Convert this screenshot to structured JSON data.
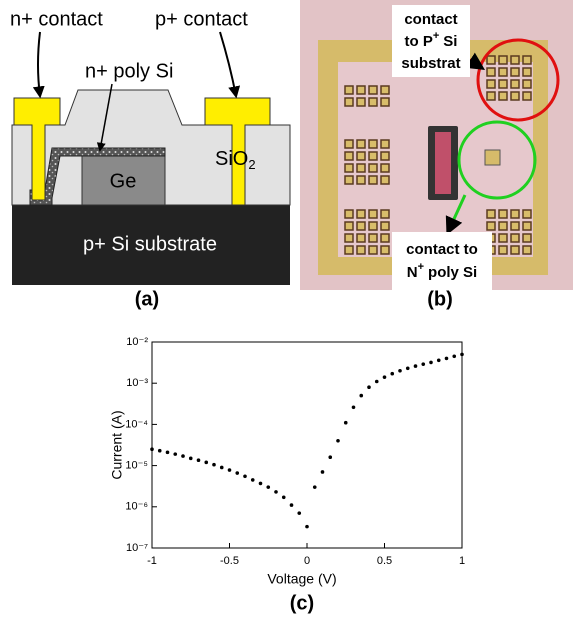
{
  "panel_a": {
    "label": "(a)",
    "n_contact": "n+ contact",
    "p_contact": "p+ contact",
    "poly": "n+ poly Si",
    "ge": "Ge",
    "sio2": "SiO",
    "sio2_sub": "2",
    "substrate": "p+ Si substrate"
  },
  "panel_b": {
    "label": "(b)",
    "callout_p": {
      "line1": "contact",
      "line2_pre": "to P",
      "line2_sup": "+",
      "line2_post": "Si",
      "line3": "substrat"
    },
    "callout_n": {
      "line1": "contact to",
      "line2_pre": "N",
      "line2_sup": "+",
      "line2_post": "poly Si"
    }
  },
  "chart_data": {
    "type": "scatter",
    "label": "(c)",
    "x_label": "Voltage (V)",
    "y_label": "Current (A)",
    "yscale": "log",
    "color": "#000000",
    "xlim": [
      -1,
      1
    ],
    "xticks": [
      -1,
      -0.5,
      0,
      0.5,
      1
    ],
    "ylim": [
      1e-07,
      0.01
    ],
    "yticks": [
      {
        "value": 1e-07,
        "label": "10⁻⁷"
      },
      {
        "value": 1e-06,
        "label": "10⁻⁶"
      },
      {
        "value": 1e-05,
        "label": "10⁻⁵"
      },
      {
        "value": 0.0001,
        "label": "10⁻⁴"
      },
      {
        "value": 0.001,
        "label": "10⁻³"
      },
      {
        "value": 0.01,
        "label": "10⁻²"
      }
    ],
    "x": [
      -1,
      -0.95,
      -0.9,
      -0.85,
      -0.8,
      -0.75,
      -0.7,
      -0.65,
      -0.6,
      -0.55,
      -0.5,
      -0.45,
      -0.4,
      -0.35,
      -0.3,
      -0.25,
      -0.2,
      -0.15,
      -0.1,
      -0.05,
      0,
      0.05,
      0.1,
      0.15,
      0.2,
      0.25,
      0.3,
      0.35,
      0.4,
      0.45,
      0.5,
      0.55,
      0.6,
      0.65,
      0.7,
      0.75,
      0.8,
      0.85,
      0.9,
      0.95,
      1
    ],
    "values": [
      2.5e-05,
      2.3e-05,
      2.1e-05,
      1.9e-05,
      1.7e-05,
      1.5e-05,
      1.35e-05,
      1.2e-05,
      1.05e-05,
      9e-06,
      7.8e-06,
      6.6e-06,
      5.5e-06,
      4.5e-06,
      3.7e-06,
      3e-06,
      2.3e-06,
      1.7e-06,
      1.1e-06,
      7e-07,
      3.3e-07,
      3e-06,
      7e-06,
      1.6e-05,
      4e-05,
      0.00011,
      0.00026,
      0.0005,
      0.0008,
      0.0011,
      0.0014,
      0.0017,
      0.002,
      0.0023,
      0.0026,
      0.0029,
      0.0032,
      0.0036,
      0.004,
      0.0045,
      0.005
    ]
  }
}
